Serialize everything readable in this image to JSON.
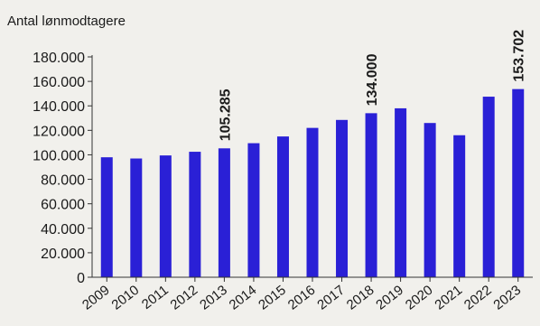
{
  "chart_data": {
    "type": "bar",
    "ylabel": "Antal lønmodtagere",
    "categories": [
      "2009",
      "2010",
      "2011",
      "2012",
      "2013",
      "2014",
      "2015",
      "2016",
      "2017",
      "2018",
      "2019",
      "2020",
      "2021",
      "2022",
      "2023"
    ],
    "values": [
      98000,
      97000,
      99500,
      102500,
      105285,
      109500,
      115000,
      122000,
      128500,
      134000,
      138000,
      126000,
      116000,
      147500,
      153702
    ],
    "ylim": [
      0,
      180000
    ],
    "yticks": [
      "0",
      "20.000",
      "40.000",
      "60.000",
      "80.000",
      "100.000",
      "120.000",
      "140.000",
      "160.000",
      "180.000"
    ],
    "data_labels": [
      {
        "category": "2013",
        "text": "105.285"
      },
      {
        "category": "2018",
        "text": "134.000"
      },
      {
        "category": "2023",
        "text": "153.702"
      }
    ],
    "bar_color": "#2a20d6",
    "grid": false,
    "legend": "none"
  }
}
